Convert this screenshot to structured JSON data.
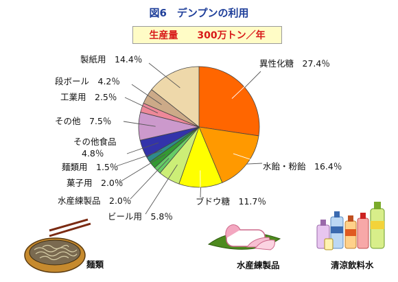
{
  "title": "図6　デンプンの利用",
  "production": {
    "label": "生産量",
    "value": "300万トン／年"
  },
  "chart_data": {
    "type": "pie",
    "slices": [
      {
        "name": "異性化糖",
        "value": 27.4,
        "label": "異性化糖　27.4％",
        "color": "#ff6600"
      },
      {
        "name": "水飴・粉飴",
        "value": 16.4,
        "label": "水飴・粉飴　16.4％",
        "color": "#ff9900"
      },
      {
        "name": "ブドウ糖",
        "value": 11.7,
        "label": "ブドウ糖　11.7％",
        "color": "#ffff00"
      },
      {
        "name": "ビール用",
        "value": 5.8,
        "label": "ビール用　5.8％",
        "color": "#ccee77"
      },
      {
        "name": "水産練製品",
        "value": 2.0,
        "label": "水産練製品　2.0％",
        "color": "#66cc66"
      },
      {
        "name": "菓子用",
        "value": 2.0,
        "label": "菓子用　2.0％",
        "color": "#339933"
      },
      {
        "name": "麺類用",
        "value": 1.5,
        "label": "麺類用　1.5％",
        "color": "#2e8b8b"
      },
      {
        "name": "その他食品",
        "value": 4.8,
        "label": [
          "その他食品",
          "4.8％"
        ],
        "color": "#3333aa"
      },
      {
        "name": "その他",
        "value": 7.5,
        "label": "その他　7.5％",
        "color": "#cc99cc"
      },
      {
        "name": "工業用",
        "value": 2.5,
        "label": "工業用　2.5％",
        "color": "#ee8899"
      },
      {
        "name": "段ボール",
        "value": 4.2,
        "label": "段ボール　4.2％",
        "color": "#ccaa88"
      },
      {
        "name": "製紙用",
        "value": 14.4,
        "label": "製紙用　14.4％",
        "color": "#eed8aa"
      }
    ]
  },
  "illustrations": {
    "noodles": {
      "icon": "noodle-bowl-icon",
      "caption": "麺類"
    },
    "fish_paste": {
      "icon": "kamaboko-icon",
      "caption": "水産練製品"
    },
    "drinks": {
      "icon": "bottles-icon",
      "caption": "清涼飲料水"
    }
  }
}
